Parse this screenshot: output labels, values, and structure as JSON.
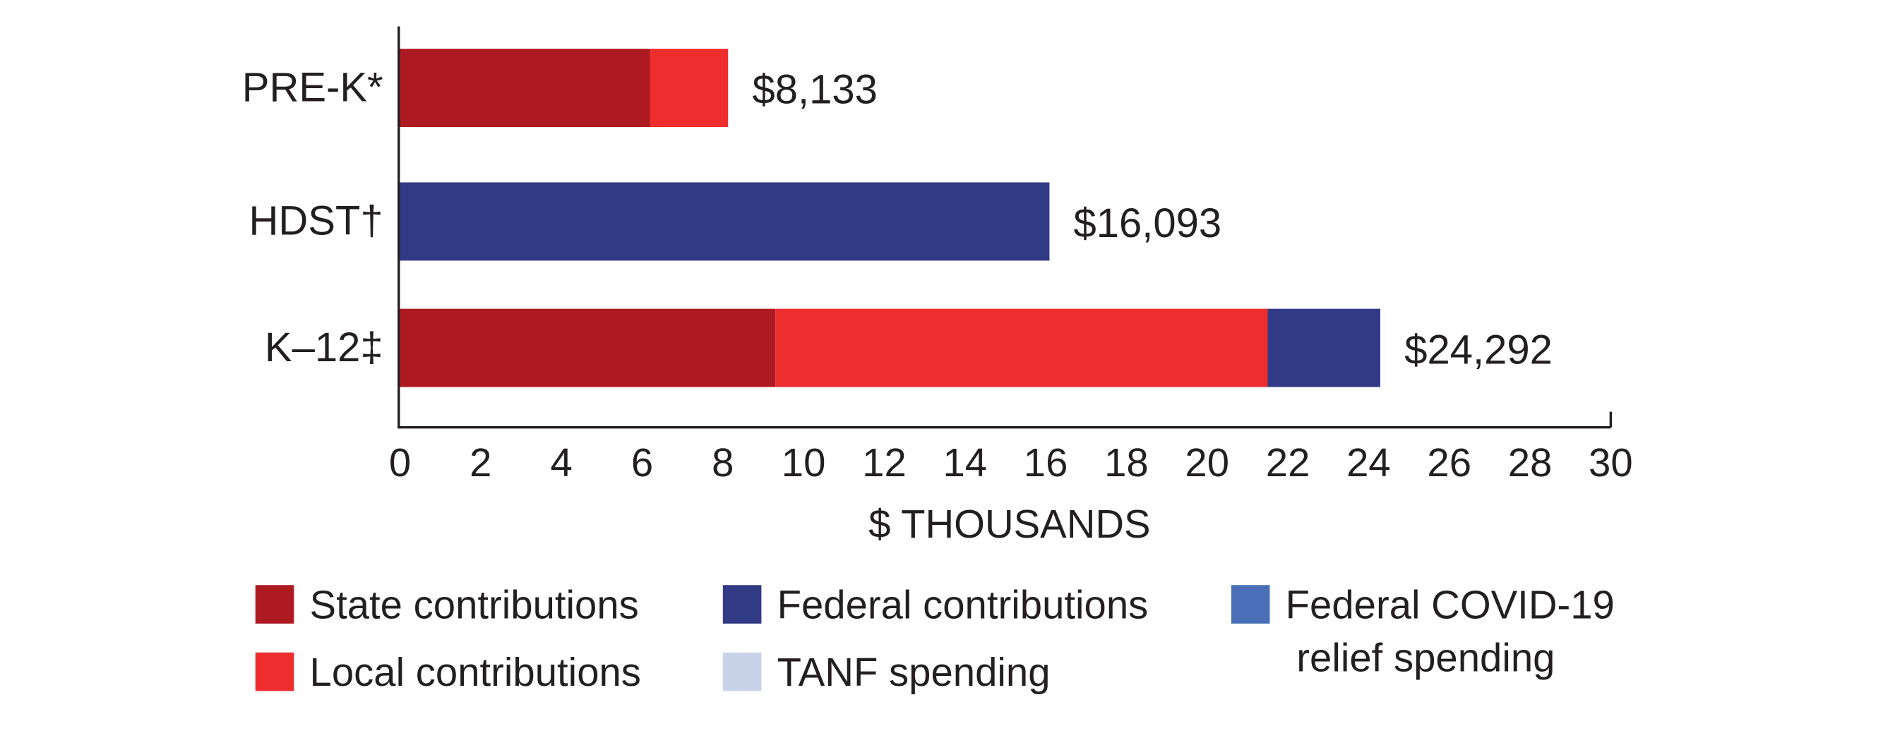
{
  "chart_data": {
    "type": "stacked-barh",
    "categories": [
      "PRE-K*",
      "HDST†",
      "K–12‡"
    ],
    "series": [
      {
        "name": "State contributions",
        "color": "#ae1a22",
        "values": [
          6.2,
          null,
          9.3
        ]
      },
      {
        "name": "Local contributions",
        "color": "#ee2d2e",
        "values": [
          1.93,
          null,
          12.2
        ]
      },
      {
        "name": "Federal contributions",
        "color": "#323a85",
        "values": [
          null,
          16.093,
          2.79
        ]
      },
      {
        "name": "TANF spending",
        "color": "#c8d3ea",
        "values": [
          null,
          null,
          null
        ]
      },
      {
        "name": "Federal COVID-19 relief spending",
        "color": "#4a6fb8",
        "values": [
          null,
          null,
          null
        ]
      }
    ],
    "totals": [
      8.133,
      16.093,
      24.292
    ],
    "total_labels": [
      "$8,133",
      "$16,093",
      "$24,292"
    ],
    "xlabel": "$ THOUSANDS",
    "xlim": [
      0,
      30
    ],
    "xticks": [
      0,
      2,
      4,
      6,
      8,
      10,
      12,
      14,
      16,
      18,
      20,
      22,
      24,
      26,
      28,
      30
    ]
  }
}
